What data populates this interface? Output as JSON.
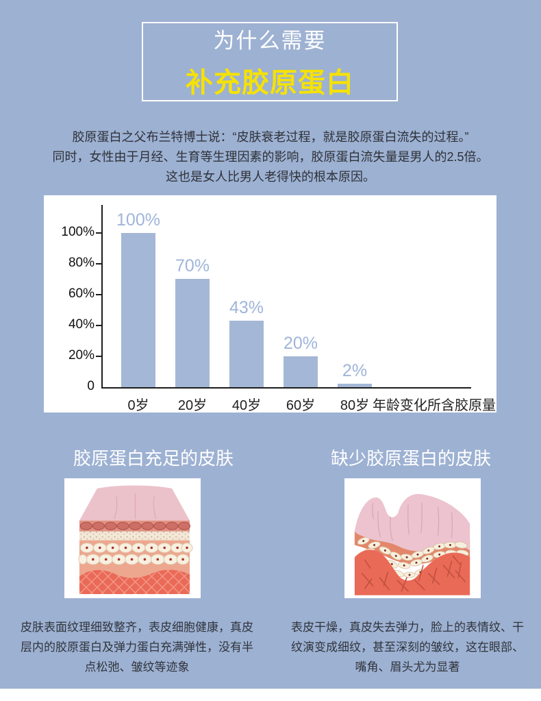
{
  "page": {
    "background_color": "#9db1d2",
    "footer_color": "#ffffff"
  },
  "header": {
    "line1": "为什么需要",
    "line2": "补充胶原蛋白",
    "line1_color": "#ffffff",
    "line2_color": "#f5e205"
  },
  "intro": {
    "line1": "胶原蛋白之父布兰特博士说：“皮肤衰老过程，就是胶原蛋白流失的过程。”",
    "line2": "同时，女性由于月经、生育等生理因素的影响，胶原蛋白流失量是男人的2.5倍。",
    "line3": "这也是女人比男人老得快的根本原因。"
  },
  "chart_data": {
    "type": "bar",
    "categories": [
      "0岁",
      "20岁",
      "40岁",
      "60岁",
      "80岁"
    ],
    "values": [
      100,
      70,
      43,
      20,
      2
    ],
    "bar_labels": [
      "100%",
      "70%",
      "43%",
      "20%",
      "2%"
    ],
    "y_ticks": [
      "0",
      "20%",
      "40%",
      "60%",
      "80%",
      "100%"
    ],
    "y_tick_values": [
      0,
      20,
      40,
      60,
      80,
      100
    ],
    "ylim": [
      0,
      120
    ],
    "axis_caption": "年龄变化所含胶原量",
    "title": "",
    "xlabel": "",
    "ylabel": "",
    "grid": false,
    "legend": false,
    "bar_color": "#a4b7d6",
    "label_color": "#9fb5d9",
    "axis_color": "#1c1c1c",
    "panel_color": "#ffffff"
  },
  "comparison": {
    "left": {
      "title": "胶原蛋白充足的皮肤",
      "description": "皮肤表面纹理细致整齐，表皮细胞健康，真皮层内的胶原蛋白及弹力蛋白充满弹性，没有半点松弛、皱纹等迹象",
      "illustration": "healthy-skin-cross-section"
    },
    "right": {
      "title": "缺少胶原蛋白的皮肤",
      "description": "表皮干燥，真皮失去弹力，脸上的表情纹、干纹演变成细纹，甚至深刻的皱纹，这在眼部、嘴角、眉头尤为显著",
      "illustration": "aged-skin-cross-section"
    }
  }
}
